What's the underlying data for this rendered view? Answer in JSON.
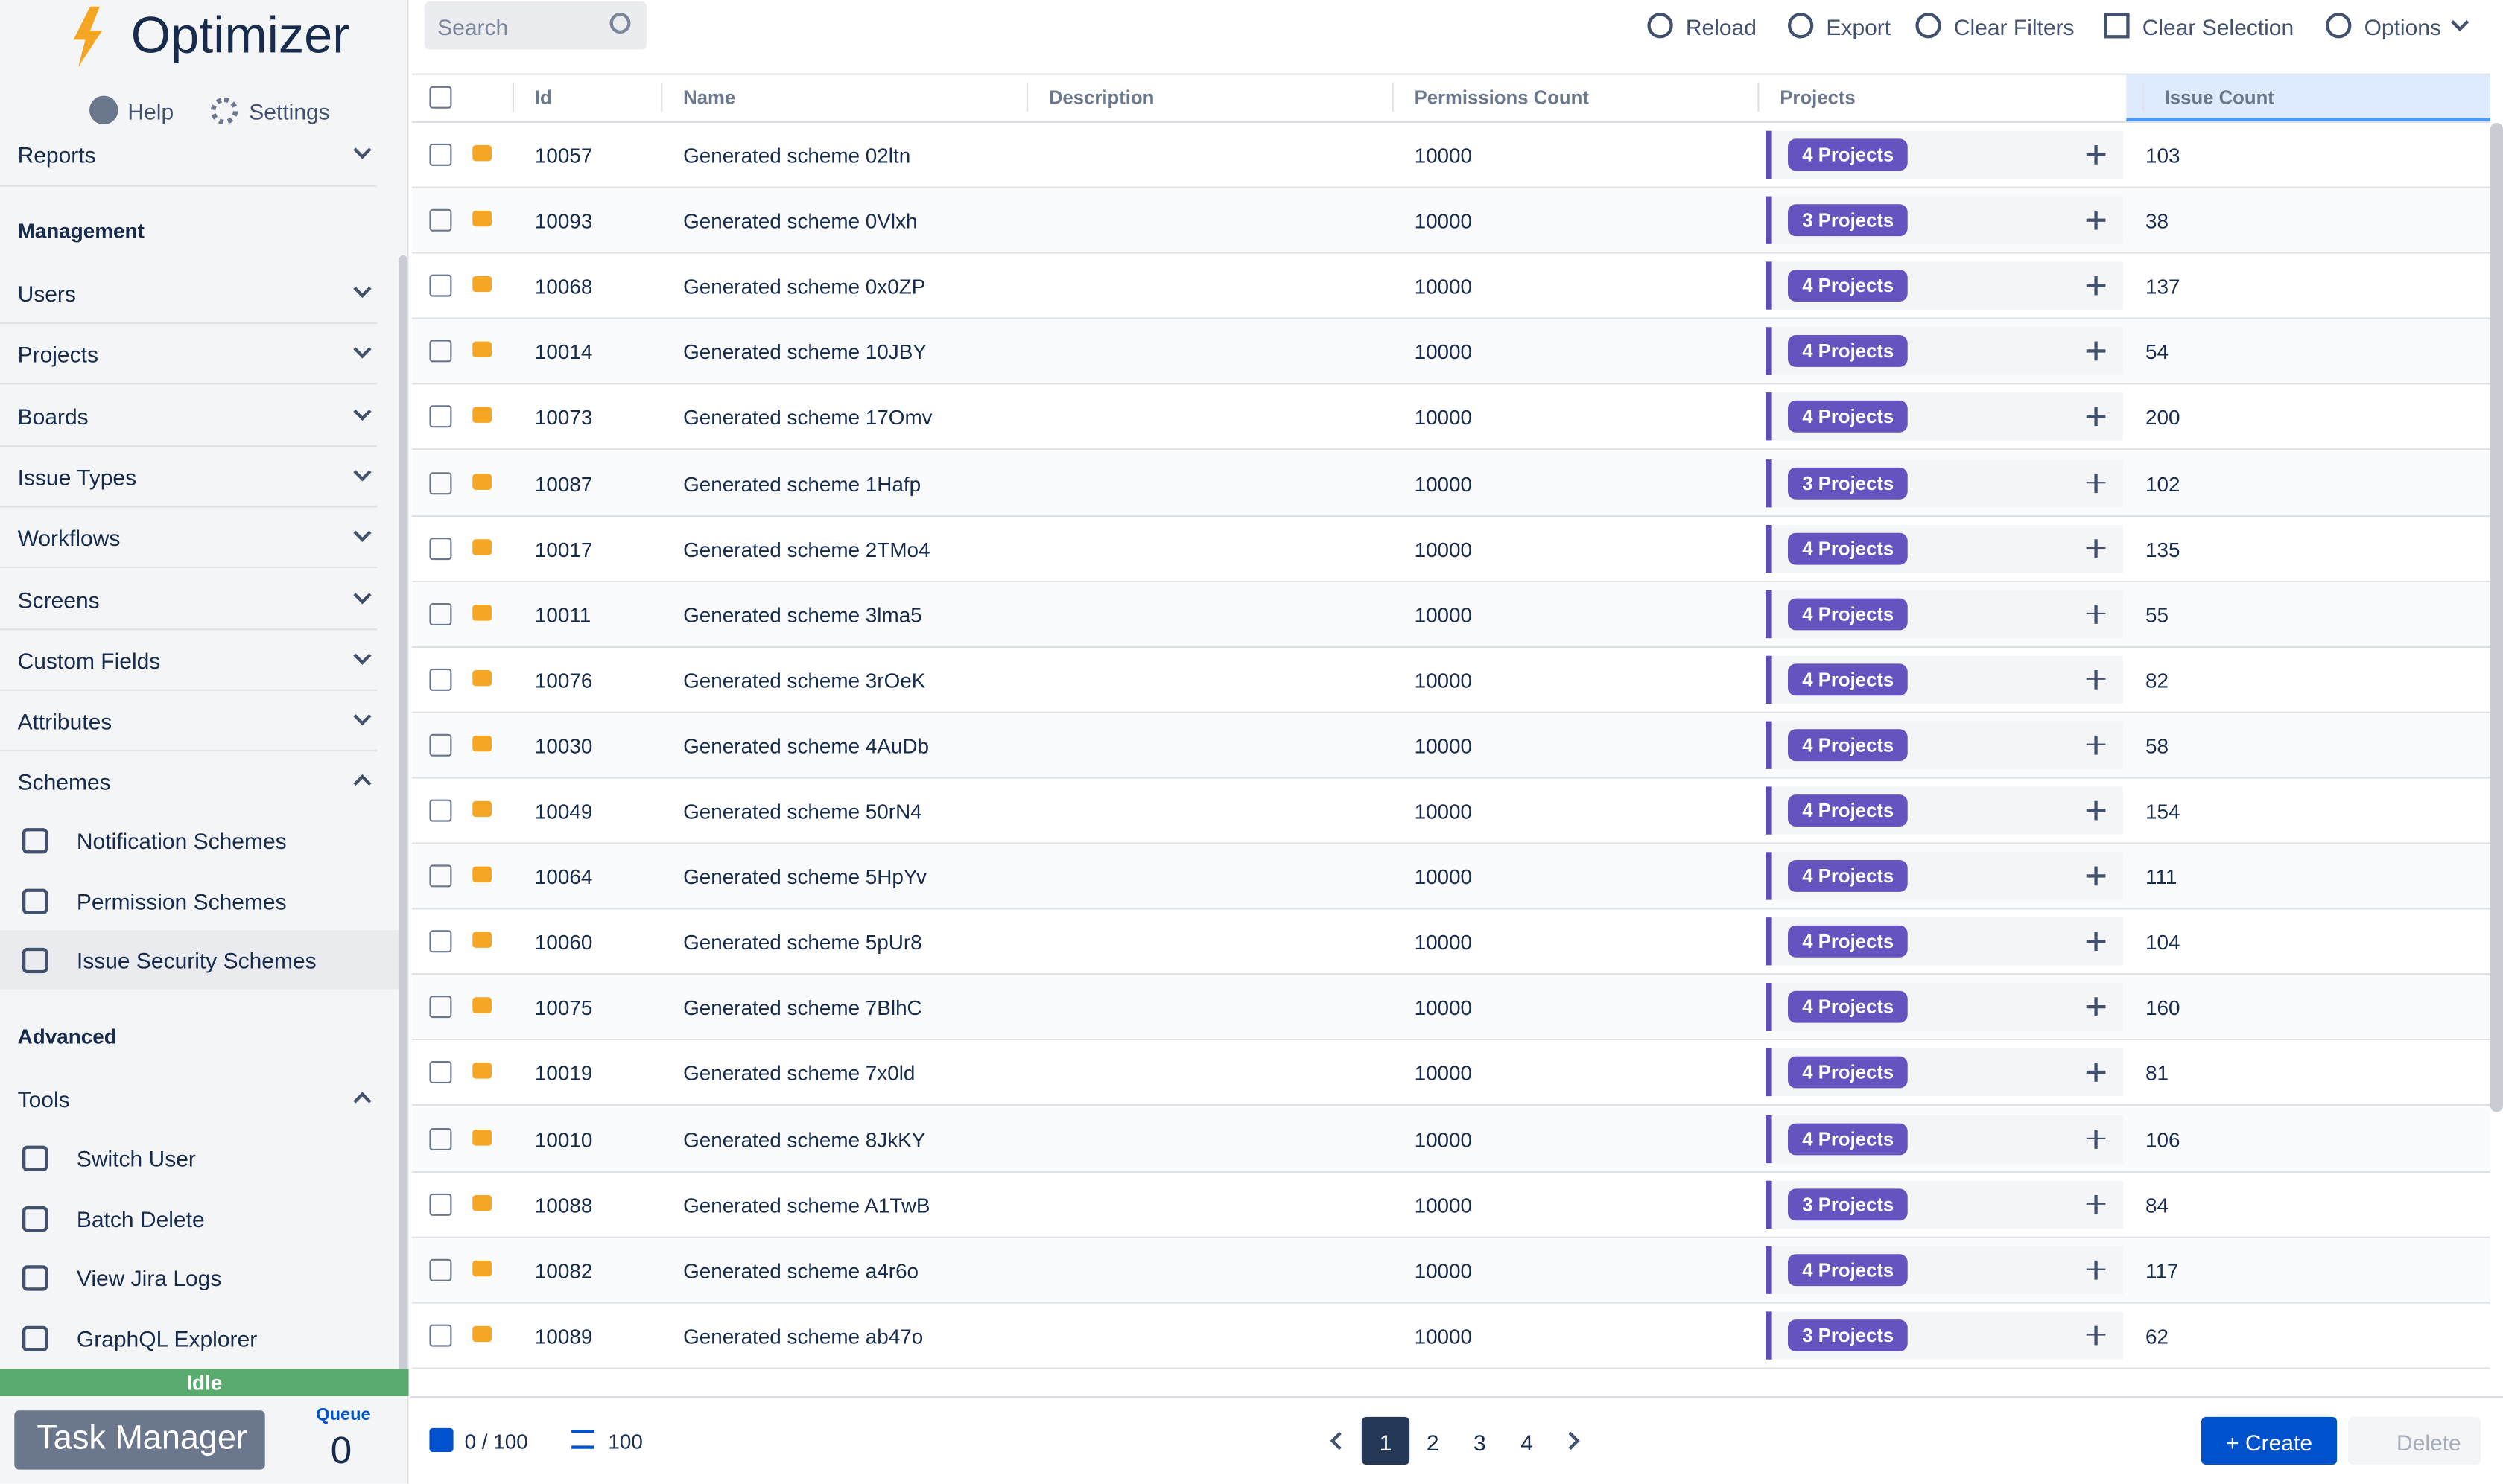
{
  "app": {
    "title": "Optimizer",
    "help": "Help",
    "settings": "Settings"
  },
  "sidebar": {
    "reports": "Reports",
    "management": {
      "heading": "Management",
      "items": [
        "Users",
        "Projects",
        "Boards",
        "Issue Types",
        "Workflows",
        "Screens",
        "Custom Fields",
        "Attributes",
        "Schemes"
      ]
    },
    "schemes": [
      "Notification Schemes",
      "Permission Schemes",
      "Issue Security Schemes"
    ],
    "advanced": {
      "heading": "Advanced",
      "tools": "Tools",
      "items": [
        "Switch User",
        "Batch Delete",
        "View Jira Logs",
        "GraphQL Explorer"
      ]
    },
    "status": "Idle",
    "task_manager": "Task Manager",
    "queue_label": "Queue",
    "queue": "0"
  },
  "toolbar": {
    "search_placeholder": "Search",
    "actions": [
      "Reload",
      "Export",
      "Clear Filters",
      "Clear Selection",
      "Options"
    ]
  },
  "table": {
    "columns": [
      "Id",
      "Name",
      "Description",
      "Permissions Count",
      "Projects",
      "Issue Count"
    ],
    "rows": [
      {
        "id": "10057",
        "name": "Generated scheme 02ltn",
        "permissions": "10000",
        "projects": "4 Projects",
        "issues": "103"
      },
      {
        "id": "10093",
        "name": "Generated scheme 0Vlxh",
        "permissions": "10000",
        "projects": "3 Projects",
        "issues": "38"
      },
      {
        "id": "10068",
        "name": "Generated scheme 0x0ZP",
        "permissions": "10000",
        "projects": "4 Projects",
        "issues": "137"
      },
      {
        "id": "10014",
        "name": "Generated scheme 10JBY",
        "permissions": "10000",
        "projects": "4 Projects",
        "issues": "54"
      },
      {
        "id": "10073",
        "name": "Generated scheme 17Omv",
        "permissions": "10000",
        "projects": "4 Projects",
        "issues": "200"
      },
      {
        "id": "10087",
        "name": "Generated scheme 1Hafp",
        "permissions": "10000",
        "projects": "3 Projects",
        "issues": "102"
      },
      {
        "id": "10017",
        "name": "Generated scheme 2TMo4",
        "permissions": "10000",
        "projects": "4 Projects",
        "issues": "135"
      },
      {
        "id": "10011",
        "name": "Generated scheme 3lma5",
        "permissions": "10000",
        "projects": "4 Projects",
        "issues": "55"
      },
      {
        "id": "10076",
        "name": "Generated scheme 3rOeK",
        "permissions": "10000",
        "projects": "4 Projects",
        "issues": "82"
      },
      {
        "id": "10030",
        "name": "Generated scheme 4AuDb",
        "permissions": "10000",
        "projects": "4 Projects",
        "issues": "58"
      },
      {
        "id": "10049",
        "name": "Generated scheme 50rN4",
        "permissions": "10000",
        "projects": "4 Projects",
        "issues": "154"
      },
      {
        "id": "10064",
        "name": "Generated scheme 5HpYv",
        "permissions": "10000",
        "projects": "4 Projects",
        "issues": "111"
      },
      {
        "id": "10060",
        "name": "Generated scheme 5pUr8",
        "permissions": "10000",
        "projects": "4 Projects",
        "issues": "104"
      },
      {
        "id": "10075",
        "name": "Generated scheme 7BlhC",
        "permissions": "10000",
        "projects": "4 Projects",
        "issues": "160"
      },
      {
        "id": "10019",
        "name": "Generated scheme 7x0ld",
        "permissions": "10000",
        "projects": "4 Projects",
        "issues": "81"
      },
      {
        "id": "10010",
        "name": "Generated scheme 8JkKY",
        "permissions": "10000",
        "projects": "4 Projects",
        "issues": "106"
      },
      {
        "id": "10088",
        "name": "Generated scheme A1TwB",
        "permissions": "10000",
        "projects": "3 Projects",
        "issues": "84"
      },
      {
        "id": "10082",
        "name": "Generated scheme a4r6o",
        "permissions": "10000",
        "projects": "4 Projects",
        "issues": "117"
      },
      {
        "id": "10089",
        "name": "Generated scheme ab47o",
        "permissions": "10000",
        "projects": "3 Projects",
        "issues": "62"
      }
    ]
  },
  "footer": {
    "selection": "0 / 100",
    "page_size": "100",
    "pages": [
      "1",
      "2",
      "3",
      "4"
    ],
    "create": "+ Create",
    "delete": "Delete"
  }
}
